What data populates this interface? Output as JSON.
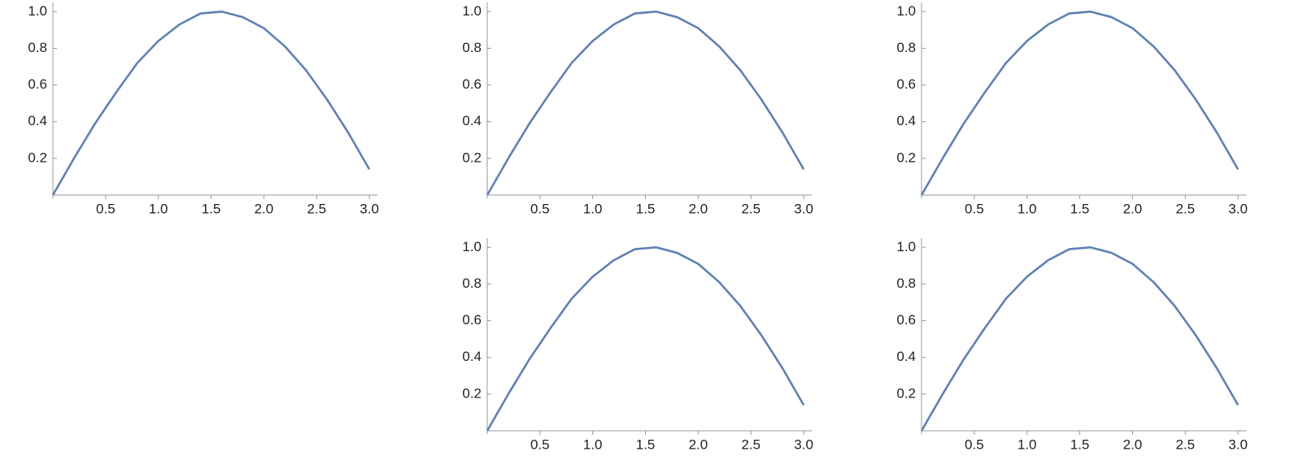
{
  "chart_data": [
    {
      "type": "line",
      "color": "#5e81b5",
      "x": [
        0,
        0.2,
        0.4,
        0.6,
        0.8,
        1.0,
        1.2,
        1.4,
        1.6,
        1.8,
        2.0,
        2.2,
        2.4,
        2.6,
        2.8,
        3.0
      ],
      "values": [
        0,
        0.2,
        0.39,
        0.56,
        0.72,
        0.84,
        0.93,
        0.99,
        1.0,
        0.97,
        0.91,
        0.81,
        0.68,
        0.52,
        0.34,
        0.14
      ],
      "xlim": [
        0,
        3.08
      ],
      "ylim": [
        0,
        1.05
      ],
      "xticks": [
        0.5,
        {
          "value": 1,
          "label": "1.0"
        },
        1.5,
        {
          "value": 2,
          "label": "2.0"
        },
        2.5,
        {
          "value": 3,
          "label": "3.0"
        }
      ],
      "yticks": [
        0.2,
        0.4,
        0.6,
        0.8,
        {
          "value": 1,
          "label": "1.0"
        }
      ]
    },
    {
      "type": "line",
      "color": "#5e81b5",
      "x": [
        0,
        0.2,
        0.4,
        0.6,
        0.8,
        1.0,
        1.2,
        1.4,
        1.6,
        1.8,
        2.0,
        2.2,
        2.4,
        2.6,
        2.8,
        3.0
      ],
      "values": [
        0,
        0.2,
        0.39,
        0.56,
        0.72,
        0.84,
        0.93,
        0.99,
        1.0,
        0.97,
        0.91,
        0.81,
        0.68,
        0.52,
        0.34,
        0.14
      ],
      "xlim": [
        0,
        3.08
      ],
      "ylim": [
        0,
        1.05
      ],
      "xticks": [
        0.5,
        {
          "value": 1,
          "label": "1.0"
        },
        1.5,
        {
          "value": 2,
          "label": "2.0"
        },
        2.5,
        {
          "value": 3,
          "label": "3.0"
        }
      ],
      "yticks": [
        0.2,
        0.4,
        0.6,
        0.8,
        {
          "value": 1,
          "label": "1.0"
        }
      ]
    },
    {
      "type": "line",
      "color": "#5e81b5",
      "x": [
        0,
        0.2,
        0.4,
        0.6,
        0.8,
        1.0,
        1.2,
        1.4,
        1.6,
        1.8,
        2.0,
        2.2,
        2.4,
        2.6,
        2.8,
        3.0
      ],
      "values": [
        0,
        0.2,
        0.39,
        0.56,
        0.72,
        0.84,
        0.93,
        0.99,
        1.0,
        0.97,
        0.91,
        0.81,
        0.68,
        0.52,
        0.34,
        0.14
      ],
      "xlim": [
        0,
        3.08
      ],
      "ylim": [
        0,
        1.05
      ],
      "xticks": [
        0.5,
        {
          "value": 1,
          "label": "1.0"
        },
        1.5,
        {
          "value": 2,
          "label": "2.0"
        },
        2.5,
        {
          "value": 3,
          "label": "3.0"
        }
      ],
      "yticks": [
        0.2,
        0.4,
        0.6,
        0.8,
        {
          "value": 1,
          "label": "1.0"
        }
      ]
    },
    {
      "type": "line",
      "color": "#5e81b5",
      "x": [
        0,
        0.2,
        0.4,
        0.6,
        0.8,
        1.0,
        1.2,
        1.4,
        1.6,
        1.8,
        2.0,
        2.2,
        2.4,
        2.6,
        2.8,
        3.0
      ],
      "values": [
        0,
        0.2,
        0.39,
        0.56,
        0.72,
        0.84,
        0.93,
        0.99,
        1.0,
        0.97,
        0.91,
        0.81,
        0.68,
        0.52,
        0.34,
        0.14
      ],
      "xlim": [
        0,
        3.08
      ],
      "ylim": [
        0,
        1.05
      ],
      "xticks": [
        0.5,
        {
          "value": 1,
          "label": "1.0"
        },
        1.5,
        {
          "value": 2,
          "label": "2.0"
        },
        2.5,
        {
          "value": 3,
          "label": "3.0"
        }
      ],
      "yticks": [
        0.2,
        0.4,
        0.6,
        0.8,
        {
          "value": 1,
          "label": "1.0"
        }
      ]
    },
    {
      "type": "line",
      "color": "#5e81b5",
      "x": [
        0,
        0.2,
        0.4,
        0.6,
        0.8,
        1.0,
        1.2,
        1.4,
        1.6,
        1.8,
        2.0,
        2.2,
        2.4,
        2.6,
        2.8,
        3.0
      ],
      "values": [
        0,
        0.2,
        0.39,
        0.56,
        0.72,
        0.84,
        0.93,
        0.99,
        1.0,
        0.97,
        0.91,
        0.81,
        0.68,
        0.52,
        0.34,
        0.14
      ],
      "xlim": [
        0,
        3.08
      ],
      "ylim": [
        0,
        1.05
      ],
      "xticks": [
        0.5,
        {
          "value": 1,
          "label": "1.0"
        },
        1.5,
        {
          "value": 2,
          "label": "2.0"
        },
        2.5,
        {
          "value": 3,
          "label": "3.0"
        }
      ],
      "yticks": [
        0.2,
        0.4,
        0.6,
        0.8,
        {
          "value": 1,
          "label": "1.0"
        }
      ]
    }
  ]
}
